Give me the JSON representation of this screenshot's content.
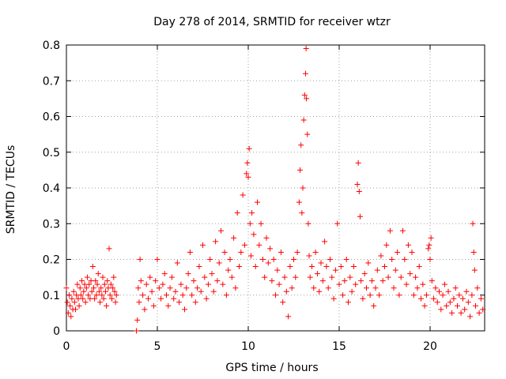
{
  "chart_data": {
    "type": "scatter",
    "title": "Day 278 of 2014, SRMTID for receiver wtzr",
    "xlabel": "GPS time / hours",
    "ylabel": "SRMTID / TECUs",
    "xlim": [
      0,
      23
    ],
    "ylim": [
      0,
      0.8
    ],
    "grid": true,
    "marker": "plus",
    "colors": {
      "points": "#ff0000",
      "grid": "#a0a0a0",
      "axes": "#000000"
    },
    "xticks": [
      0,
      5,
      10,
      15,
      20
    ],
    "xtick_labels": [
      "0",
      "5",
      "10",
      "15",
      "20"
    ],
    "yticks": [
      0,
      0.1,
      0.2,
      0.3,
      0.4,
      0.5,
      0.6,
      0.7,
      0.8
    ],
    "ytick_labels": [
      "0",
      "0.1",
      "0.2",
      "0.3",
      "0.4",
      "0.5",
      "0.6",
      "0.7",
      "0.8"
    ],
    "series": [
      {
        "name": "SRMTID",
        "points": [
          [
            0.0,
            0.12
          ],
          [
            0.05,
            0.08
          ],
          [
            0.1,
            0.05
          ],
          [
            0.15,
            0.1
          ],
          [
            0.2,
            0.07
          ],
          [
            0.25,
            0.04
          ],
          [
            0.3,
            0.09
          ],
          [
            0.35,
            0.06
          ],
          [
            0.4,
            0.11
          ],
          [
            0.45,
            0.08
          ],
          [
            0.5,
            0.06
          ],
          [
            0.55,
            0.1
          ],
          [
            0.6,
            0.13
          ],
          [
            0.65,
            0.09
          ],
          [
            0.7,
            0.07
          ],
          [
            0.75,
            0.12
          ],
          [
            0.8,
            0.1
          ],
          [
            0.85,
            0.14
          ],
          [
            0.9,
            0.09
          ],
          [
            0.95,
            0.11
          ],
          [
            1.0,
            0.13
          ],
          [
            1.05,
            0.08
          ],
          [
            1.1,
            0.12
          ],
          [
            1.15,
            0.15
          ],
          [
            1.2,
            0.1
          ],
          [
            1.25,
            0.13
          ],
          [
            1.3,
            0.09
          ],
          [
            1.35,
            0.14
          ],
          [
            1.4,
            0.11
          ],
          [
            1.45,
            0.18
          ],
          [
            1.5,
            0.12
          ],
          [
            1.55,
            0.09
          ],
          [
            1.6,
            0.14
          ],
          [
            1.65,
            0.1
          ],
          [
            1.7,
            0.13
          ],
          [
            1.75,
            0.16
          ],
          [
            1.8,
            0.11
          ],
          [
            1.85,
            0.08
          ],
          [
            1.9,
            0.12
          ],
          [
            1.95,
            0.1
          ],
          [
            2.0,
            0.15
          ],
          [
            2.05,
            0.09
          ],
          [
            2.1,
            0.13
          ],
          [
            2.15,
            0.11
          ],
          [
            2.2,
            0.07
          ],
          [
            2.25,
            0.14
          ],
          [
            2.3,
            0.12
          ],
          [
            2.35,
            0.23
          ],
          [
            2.4,
            0.1
          ],
          [
            2.45,
            0.13
          ],
          [
            2.5,
            0.09
          ],
          [
            2.55,
            0.12
          ],
          [
            2.6,
            0.15
          ],
          [
            2.65,
            0.11
          ],
          [
            2.7,
            0.08
          ],
          [
            2.75,
            0.1
          ],
          [
            3.85,
            0.0
          ],
          [
            3.9,
            0.03
          ],
          [
            3.95,
            0.12
          ],
          [
            4.0,
            0.08
          ],
          [
            4.05,
            0.2
          ],
          [
            4.1,
            0.14
          ],
          [
            4.2,
            0.1
          ],
          [
            4.3,
            0.06
          ],
          [
            4.4,
            0.13
          ],
          [
            4.5,
            0.09
          ],
          [
            4.6,
            0.15
          ],
          [
            4.7,
            0.11
          ],
          [
            4.8,
            0.07
          ],
          [
            4.9,
            0.14
          ],
          [
            5.0,
            0.2
          ],
          [
            5.1,
            0.12
          ],
          [
            5.2,
            0.09
          ],
          [
            5.3,
            0.13
          ],
          [
            5.4,
            0.16
          ],
          [
            5.5,
            0.1
          ],
          [
            5.6,
            0.07
          ],
          [
            5.7,
            0.12
          ],
          [
            5.8,
            0.15
          ],
          [
            5.9,
            0.09
          ],
          [
            6.0,
            0.11
          ],
          [
            6.1,
            0.19
          ],
          [
            6.2,
            0.08
          ],
          [
            6.3,
            0.13
          ],
          [
            6.4,
            0.1
          ],
          [
            6.5,
            0.06
          ],
          [
            6.6,
            0.12
          ],
          [
            6.7,
            0.16
          ],
          [
            6.8,
            0.22
          ],
          [
            6.9,
            0.1
          ],
          [
            7.0,
            0.14
          ],
          [
            7.1,
            0.08
          ],
          [
            7.2,
            0.12
          ],
          [
            7.3,
            0.18
          ],
          [
            7.4,
            0.11
          ],
          [
            7.5,
            0.24
          ],
          [
            7.6,
            0.15
          ],
          [
            7.7,
            0.09
          ],
          [
            7.8,
            0.13
          ],
          [
            7.9,
            0.2
          ],
          [
            8.0,
            0.16
          ],
          [
            8.1,
            0.11
          ],
          [
            8.2,
            0.25
          ],
          [
            8.3,
            0.14
          ],
          [
            8.4,
            0.19
          ],
          [
            8.5,
            0.28
          ],
          [
            8.6,
            0.13
          ],
          [
            8.7,
            0.22
          ],
          [
            8.8,
            0.1
          ],
          [
            8.9,
            0.17
          ],
          [
            9.0,
            0.2
          ],
          [
            9.1,
            0.15
          ],
          [
            9.2,
            0.26
          ],
          [
            9.3,
            0.12
          ],
          [
            9.4,
            0.33
          ],
          [
            9.5,
            0.18
          ],
          [
            9.6,
            0.22
          ],
          [
            9.7,
            0.38
          ],
          [
            9.8,
            0.24
          ],
          [
            9.9,
            0.44
          ],
          [
            9.95,
            0.47
          ],
          [
            10.0,
            0.43
          ],
          [
            10.05,
            0.51
          ],
          [
            10.1,
            0.3
          ],
          [
            10.15,
            0.21
          ],
          [
            10.2,
            0.33
          ],
          [
            10.3,
            0.27
          ],
          [
            10.4,
            0.18
          ],
          [
            10.5,
            0.36
          ],
          [
            10.6,
            0.24
          ],
          [
            10.7,
            0.3
          ],
          [
            10.8,
            0.2
          ],
          [
            10.9,
            0.15
          ],
          [
            11.0,
            0.26
          ],
          [
            11.1,
            0.19
          ],
          [
            11.2,
            0.23
          ],
          [
            11.3,
            0.14
          ],
          [
            11.4,
            0.2
          ],
          [
            11.5,
            0.1
          ],
          [
            11.6,
            0.17
          ],
          [
            11.7,
            0.13
          ],
          [
            11.8,
            0.22
          ],
          [
            11.9,
            0.08
          ],
          [
            12.0,
            0.15
          ],
          [
            12.1,
            0.11
          ],
          [
            12.2,
            0.04
          ],
          [
            12.3,
            0.18
          ],
          [
            12.4,
            0.12
          ],
          [
            12.5,
            0.2
          ],
          [
            12.6,
            0.15
          ],
          [
            12.7,
            0.22
          ],
          [
            12.8,
            0.36
          ],
          [
            12.85,
            0.45
          ],
          [
            12.9,
            0.52
          ],
          [
            12.95,
            0.33
          ],
          [
            13.0,
            0.4
          ],
          [
            13.05,
            0.59
          ],
          [
            13.1,
            0.66
          ],
          [
            13.15,
            0.72
          ],
          [
            13.18,
            0.79
          ],
          [
            13.2,
            0.65
          ],
          [
            13.25,
            0.55
          ],
          [
            13.3,
            0.3
          ],
          [
            13.35,
            0.21
          ],
          [
            13.4,
            0.15
          ],
          [
            13.5,
            0.18
          ],
          [
            13.6,
            0.12
          ],
          [
            13.7,
            0.22
          ],
          [
            13.8,
            0.16
          ],
          [
            13.9,
            0.11
          ],
          [
            14.0,
            0.19
          ],
          [
            14.1,
            0.14
          ],
          [
            14.2,
            0.25
          ],
          [
            14.3,
            0.18
          ],
          [
            14.4,
            0.12
          ],
          [
            14.5,
            0.2
          ],
          [
            14.6,
            0.15
          ],
          [
            14.7,
            0.09
          ],
          [
            14.8,
            0.17
          ],
          [
            14.9,
            0.3
          ],
          [
            15.0,
            0.13
          ],
          [
            15.1,
            0.18
          ],
          [
            15.2,
            0.1
          ],
          [
            15.3,
            0.14
          ],
          [
            15.4,
            0.2
          ],
          [
            15.5,
            0.08
          ],
          [
            15.6,
            0.15
          ],
          [
            15.7,
            0.11
          ],
          [
            15.8,
            0.18
          ],
          [
            15.9,
            0.13
          ],
          [
            16.0,
            0.41
          ],
          [
            16.05,
            0.47
          ],
          [
            16.1,
            0.39
          ],
          [
            16.15,
            0.32
          ],
          [
            16.2,
            0.14
          ],
          [
            16.3,
            0.09
          ],
          [
            16.4,
            0.16
          ],
          [
            16.5,
            0.12
          ],
          [
            16.6,
            0.19
          ],
          [
            16.7,
            0.1
          ],
          [
            16.8,
            0.14
          ],
          [
            16.9,
            0.07
          ],
          [
            17.0,
            0.12
          ],
          [
            17.1,
            0.17
          ],
          [
            17.2,
            0.1
          ],
          [
            17.3,
            0.21
          ],
          [
            17.4,
            0.14
          ],
          [
            17.5,
            0.18
          ],
          [
            17.6,
            0.24
          ],
          [
            17.7,
            0.15
          ],
          [
            17.8,
            0.28
          ],
          [
            17.9,
            0.2
          ],
          [
            18.0,
            0.12
          ],
          [
            18.1,
            0.17
          ],
          [
            18.2,
            0.22
          ],
          [
            18.3,
            0.1
          ],
          [
            18.4,
            0.15
          ],
          [
            18.5,
            0.28
          ],
          [
            18.6,
            0.2
          ],
          [
            18.7,
            0.13
          ],
          [
            18.8,
            0.24
          ],
          [
            18.9,
            0.16
          ],
          [
            19.0,
            0.22
          ],
          [
            19.1,
            0.1
          ],
          [
            19.2,
            0.15
          ],
          [
            19.3,
            0.12
          ],
          [
            19.4,
            0.18
          ],
          [
            19.5,
            0.09
          ],
          [
            19.6,
            0.13
          ],
          [
            19.7,
            0.07
          ],
          [
            19.8,
            0.1
          ],
          [
            19.9,
            0.23
          ],
          [
            19.95,
            0.24
          ],
          [
            20.0,
            0.2
          ],
          [
            20.05,
            0.26
          ],
          [
            20.1,
            0.14
          ],
          [
            20.2,
            0.09
          ],
          [
            20.3,
            0.12
          ],
          [
            20.4,
            0.08
          ],
          [
            20.5,
            0.11
          ],
          [
            20.6,
            0.06
          ],
          [
            20.7,
            0.1
          ],
          [
            20.8,
            0.13
          ],
          [
            20.9,
            0.07
          ],
          [
            21.0,
            0.11
          ],
          [
            21.1,
            0.08
          ],
          [
            21.2,
            0.05
          ],
          [
            21.3,
            0.09
          ],
          [
            21.4,
            0.12
          ],
          [
            21.5,
            0.07
          ],
          [
            21.6,
            0.1
          ],
          [
            21.7,
            0.05
          ],
          [
            21.8,
            0.09
          ],
          [
            21.9,
            0.06
          ],
          [
            22.0,
            0.11
          ],
          [
            22.1,
            0.08
          ],
          [
            22.2,
            0.04
          ],
          [
            22.3,
            0.1
          ],
          [
            22.35,
            0.3
          ],
          [
            22.4,
            0.22
          ],
          [
            22.45,
            0.17
          ],
          [
            22.5,
            0.07
          ],
          [
            22.6,
            0.12
          ],
          [
            22.7,
            0.05
          ],
          [
            22.8,
            0.09
          ],
          [
            22.9,
            0.06
          ]
        ]
      }
    ]
  }
}
